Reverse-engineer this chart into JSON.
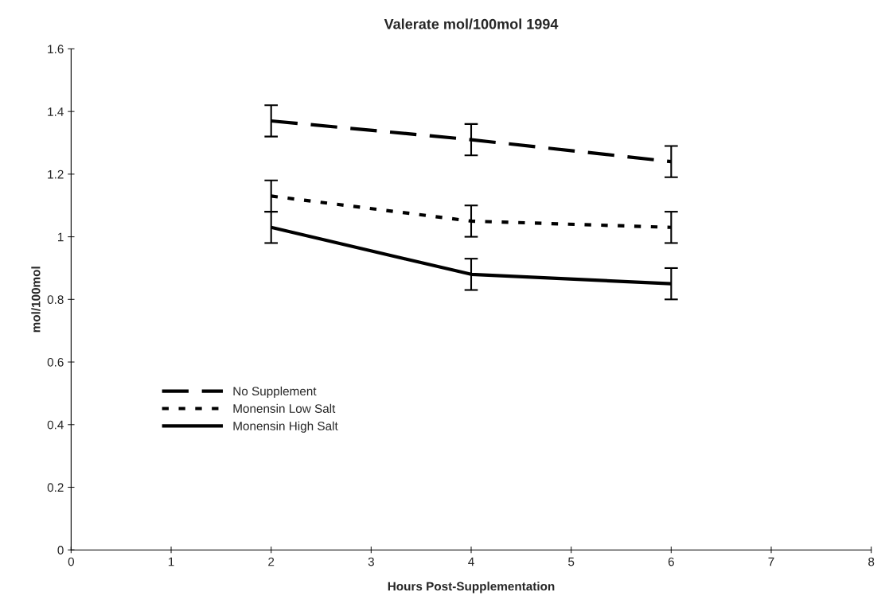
{
  "chart_data": {
    "type": "line",
    "title": "Valerate mol/100mol 1994",
    "xlabel": "Hours Post-Supplementation",
    "ylabel": "mol/100mol",
    "x": [
      2,
      4,
      6
    ],
    "series": [
      {
        "name": "No Supplement",
        "color": "#000000",
        "line_style": "dashed",
        "values": [
          1.37,
          1.31,
          1.24
        ],
        "errors": [
          0.05,
          0.05,
          0.05
        ]
      },
      {
        "name": "Monensin Low Salt",
        "color": "#000000",
        "line_style": "dotted",
        "values": [
          1.13,
          1.05,
          1.03
        ],
        "errors": [
          0.05,
          0.05,
          0.05
        ]
      },
      {
        "name": "Monensin High Salt",
        "color": "#000000",
        "line_style": "solid",
        "values": [
          1.03,
          0.88,
          0.85
        ],
        "errors": [
          0.05,
          0.05,
          0.05
        ]
      }
    ],
    "xlim": [
      0,
      8
    ],
    "xticks": [
      0,
      1,
      2,
      3,
      4,
      5,
      6,
      7,
      8
    ],
    "ylim": [
      0,
      1.6
    ],
    "yticks": [
      0,
      0.2,
      0.4,
      0.6,
      0.8,
      1,
      1.2,
      1.4,
      1.6
    ],
    "grid": false,
    "legend": "left",
    "marker": "none"
  }
}
